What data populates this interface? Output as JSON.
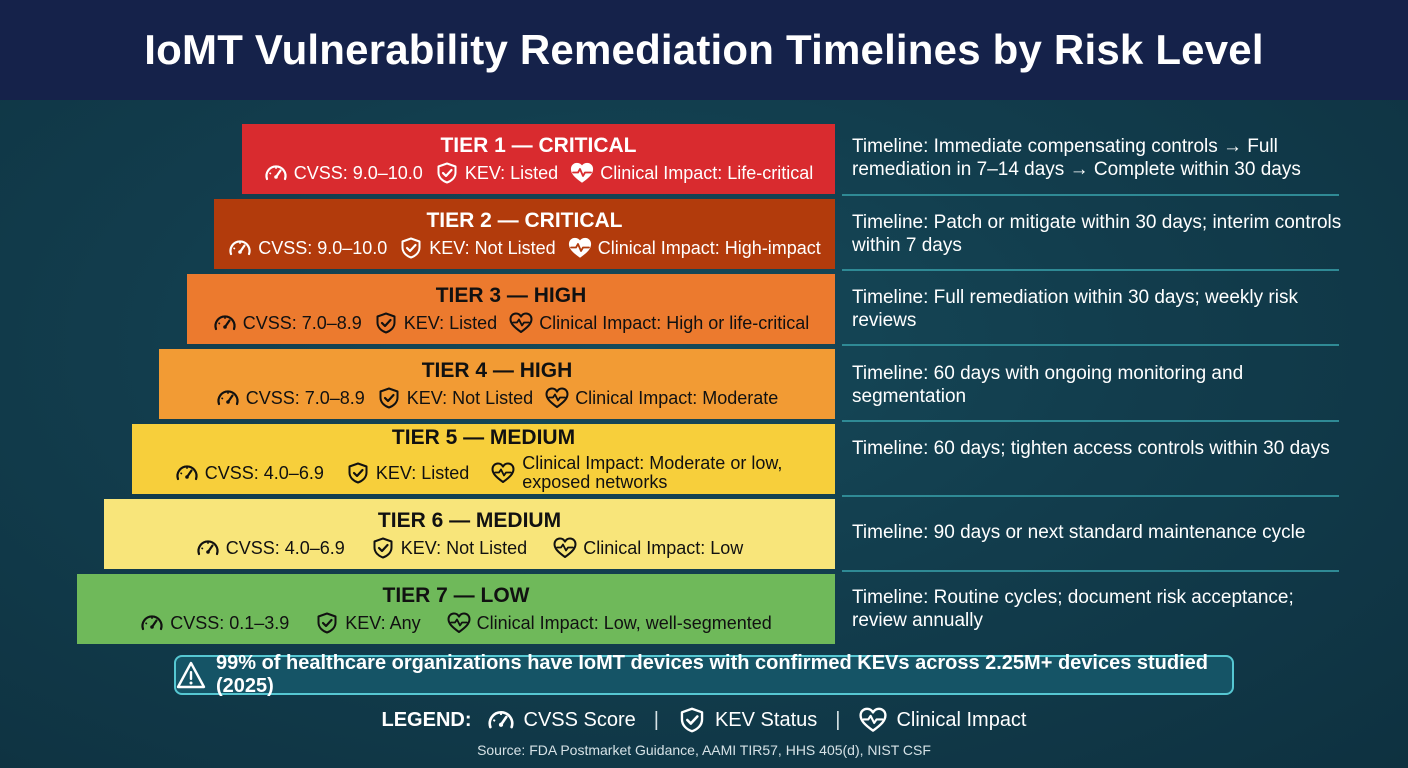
{
  "title": "IoMT Vulnerability Remediation Timelines by Risk Level",
  "tiers": [
    {
      "title": "TIER 1 — CRITICAL",
      "cvss": "CVSS: 9.0–10.0",
      "kev": "KEV: Listed",
      "impact": "Clinical Impact: Life-critical",
      "color": "#d92b2f",
      "text_color": "#ffffff",
      "timeline": "Timeline: Immediate compensating controls → Full remediation in 7–14 days → Complete within 30 days"
    },
    {
      "title": "TIER 2 — CRITICAL",
      "cvss": "CVSS: 9.0–10.0",
      "kev": "KEV: Not Listed",
      "impact": "Clinical Impact: High-impact",
      "color": "#b23b0c",
      "text_color": "#ffffff",
      "timeline": "Timeline: Patch or mitigate within 30 days; interim controls within 7 days"
    },
    {
      "title": "TIER 3 — HIGH",
      "cvss": "CVSS: 7.0–8.9",
      "kev": "KEV: Listed",
      "impact": "Clinical Impact: High or life-critical",
      "color": "#ec7a2e",
      "text_color": "#111111",
      "timeline": "Timeline: Full remediation within 30 days; weekly risk reviews"
    },
    {
      "title": "TIER 4 — HIGH",
      "cvss": "CVSS: 7.0–8.9",
      "kev": "KEV: Not Listed",
      "impact": "Clinical Impact: Moderate",
      "color": "#f29b34",
      "text_color": "#111111",
      "timeline": "Timeline: 60 days with ongoing monitoring and segmentation"
    },
    {
      "title": "TIER 5 — MEDIUM",
      "cvss": "CVSS: 4.0–6.9",
      "kev": "KEV: Listed",
      "impact": "Clinical Impact: Moderate or low, exposed networks",
      "color": "#f7cf3b",
      "text_color": "#111111",
      "timeline": "Timeline: 60 days; tighten access controls within 30 days"
    },
    {
      "title": "TIER 6 — MEDIUM",
      "cvss": "CVSS: 4.0–6.9",
      "kev": "KEV: Not Listed",
      "impact": "Clinical Impact: Low",
      "color": "#f8e57a",
      "text_color": "#111111",
      "timeline": "Timeline: 90 days or next standard maintenance cycle"
    },
    {
      "title": "TIER 7 — LOW",
      "cvss": "CVSS: 0.1–3.9",
      "kev": "KEV: Any",
      "impact": "Clinical Impact: Low, well-segmented",
      "color": "#6fb95a",
      "text_color": "#111111",
      "timeline": "Timeline: Routine cycles; document risk acceptance; review annually"
    }
  ],
  "stat": "99% of healthcare organizations have IoMT devices with confirmed KEVs across 2.25M+ devices studied (2025)",
  "legend": {
    "label": "LEGEND:",
    "items": [
      {
        "icon": "gauge-icon",
        "text": "CVSS Score"
      },
      {
        "icon": "shield-check-icon",
        "text": "KEV Status"
      },
      {
        "icon": "heartbeat-icon",
        "text": "Clinical Impact"
      }
    ],
    "separator": "|"
  },
  "source": "Source: FDA Postmarket Guidance, AAMI TIR57, HHS 405(d), NIST CSF",
  "colors": {
    "header_bg": "#15224a",
    "body_bg": "#134556",
    "stat_border": "#56c7d2",
    "divider": "#2f8a95"
  }
}
